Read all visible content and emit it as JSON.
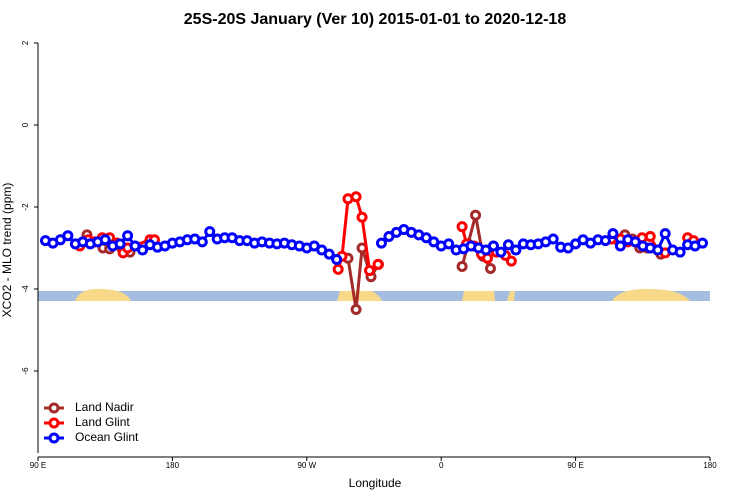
{
  "chart_data": {
    "type": "line",
    "title": "25S-20S January (Ver 10)   2015-01-01 to 2020-12-18",
    "x_label": "Longitude",
    "y_label": "XCO2 - MLO trend (ppm)",
    "xlim": [
      90,
      540
    ],
    "ylim": [
      -8,
      2
    ],
    "xticks": [
      {
        "value": 90,
        "label": "90 E"
      },
      180,
      {
        "value": 270,
        "label": "90 W"
      },
      {
        "value": 360,
        "label": "0"
      },
      {
        "value": 450,
        "label": "90 E"
      },
      {
        "value": 540,
        "label": "180"
      }
    ],
    "yticks": [
      -6,
      -4,
      -2,
      0,
      2
    ],
    "legend": "bottom-left",
    "series": [
      {
        "name": "Land Nadir",
        "color": "#a52a2a",
        "x": [
          118,
          122.8,
          128,
          133.5,
          138,
          146,
          151.6,
          220,
          297.6,
          303,
          307,
          313,
          318,
          340,
          374,
          378,
          383,
          388,
          393,
          440,
          478,
          483,
          488,
          493,
          498,
          507
        ],
        "values": [
          -2.9,
          -2.68,
          -2.85,
          -3.0,
          -3.02,
          -3.0,
          -3.1,
          null,
          -3.25,
          -4.5,
          -3.0,
          -3.7,
          -3.4,
          null,
          -3.45,
          -2.9,
          -2.2,
          -3.2,
          -3.5,
          null,
          -2.8,
          -2.68,
          -2.78,
          -3.0,
          -3.0,
          -3.15
        ]
      },
      {
        "name": "Land Glint",
        "color": "#ff0000",
        "x": [
          118,
          123.5,
          128,
          133,
          138,
          143,
          147,
          150,
          165,
          168,
          220,
          291,
          293.6,
          297.6,
          303,
          307,
          312,
          317.7,
          340,
          374,
          377,
          382,
          387,
          391,
          397,
          403,
          407,
          440,
          474,
          480,
          485,
          490,
          494.5,
          500,
          505,
          510,
          518,
          525,
          529
        ],
        "values": [
          -2.95,
          -2.8,
          -2.85,
          -2.75,
          -2.75,
          -2.88,
          -3.12,
          -3.0,
          -2.8,
          -2.8,
          null,
          -3.52,
          -3.2,
          -1.8,
          -1.75,
          -2.25,
          -3.55,
          -3.4,
          null,
          -2.48,
          -2.9,
          -2.95,
          -3.15,
          -3.25,
          -3.1,
          -3.18,
          -3.32,
          null,
          -2.78,
          -2.78,
          -2.85,
          -2.85,
          -2.75,
          -2.72,
          -3.05,
          -3.12,
          null,
          -2.75,
          -2.82
        ]
      },
      {
        "name": "Ocean Glint",
        "color": "#0000ff",
        "x": [
          95,
          100,
          105,
          110,
          115,
          120,
          125,
          130,
          135,
          140,
          145,
          150,
          155,
          160,
          165,
          170,
          175,
          180,
          185,
          190,
          195,
          200,
          205,
          210,
          215,
          220,
          225,
          230,
          235,
          240,
          245,
          250,
          255,
          260,
          265,
          270,
          275,
          280,
          285,
          290,
          305,
          320,
          325,
          330,
          335,
          340,
          345,
          350,
          355,
          360,
          365,
          370,
          375,
          380,
          385,
          390,
          395,
          400,
          405,
          410,
          415,
          420,
          425,
          430,
          435,
          440,
          445,
          450,
          455,
          460,
          465,
          470,
          475,
          480,
          485,
          490,
          495,
          500,
          505,
          510,
          515,
          520,
          525,
          530,
          535
        ],
        "values": [
          -2.82,
          -2.88,
          -2.8,
          -2.7,
          -2.9,
          -2.85,
          -2.9,
          -2.85,
          -2.8,
          -2.95,
          -2.9,
          -2.7,
          -2.95,
          -3.05,
          -2.92,
          -2.98,
          -2.95,
          -2.88,
          -2.85,
          -2.8,
          -2.78,
          -2.85,
          -2.6,
          -2.78,
          -2.75,
          -2.75,
          -2.82,
          -2.82,
          -2.88,
          -2.85,
          -2.88,
          -2.9,
          -2.88,
          -2.92,
          -2.95,
          -3.0,
          -2.95,
          -3.05,
          -3.15,
          -3.28,
          null,
          -2.88,
          -2.72,
          -2.62,
          -2.55,
          -2.62,
          -2.68,
          -2.75,
          -2.85,
          -2.95,
          -2.9,
          -3.05,
          -3.02,
          -2.95,
          -3.0,
          -3.05,
          -2.95,
          -3.1,
          -2.92,
          -3.05,
          -2.9,
          -2.92,
          -2.9,
          -2.85,
          -2.78,
          -2.98,
          -3.0,
          -2.9,
          -2.8,
          -2.88,
          -2.8,
          -2.82,
          -2.65,
          -2.95,
          -2.8,
          -2.85,
          -2.95,
          -3.0,
          -3.05,
          -2.65,
          -3.05,
          -3.1,
          -2.92,
          -2.95,
          -2.88
        ]
      }
    ]
  }
}
